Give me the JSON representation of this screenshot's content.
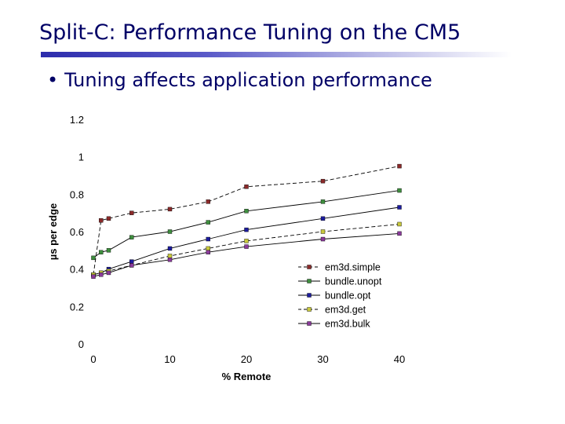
{
  "slide": {
    "title": "Split-C: Performance Tuning on the CM5",
    "bullet_symbol": "•",
    "bullet": "Tuning affects application performance"
  },
  "chart_data": {
    "type": "line",
    "title": "",
    "xlabel": "% Remote",
    "ylabel": "µs per edge",
    "xlim": [
      0,
      40
    ],
    "ylim": [
      0,
      1.2
    ],
    "x_ticks": [
      "0",
      "10",
      "20",
      "30",
      "40"
    ],
    "y_ticks": [
      "0",
      "0.2",
      "0.4",
      "0.6",
      "0.8",
      "1",
      "1.2"
    ],
    "x_tick_values": [
      0,
      10,
      20,
      30,
      40
    ],
    "y_tick_values": [
      0,
      0.2,
      0.4,
      0.6,
      0.8,
      1.0,
      1.2
    ],
    "grid": false,
    "legend_position": "bottom-right",
    "series": [
      {
        "name": "em3d.simple",
        "color": "#8b2a2a",
        "line_style": "dashed",
        "x": [
          0,
          1,
          2,
          5,
          10,
          15,
          20,
          30,
          40
        ],
        "values": [
          0.37,
          0.66,
          0.67,
          0.7,
          0.72,
          0.76,
          0.84,
          0.87,
          0.95
        ]
      },
      {
        "name": "bundle.unopt",
        "color": "#3e8e3e",
        "line_style": "solid",
        "x": [
          0,
          1,
          2,
          5,
          10,
          15,
          20,
          30,
          40
        ],
        "values": [
          0.46,
          0.49,
          0.5,
          0.57,
          0.6,
          0.65,
          0.71,
          0.76,
          0.82
        ]
      },
      {
        "name": "bundle.opt",
        "color": "#1c1c9e",
        "line_style": "solid",
        "x": [
          0,
          1,
          2,
          5,
          10,
          15,
          20,
          30,
          40
        ],
        "values": [
          0.37,
          0.38,
          0.4,
          0.44,
          0.51,
          0.56,
          0.61,
          0.67,
          0.73
        ]
      },
      {
        "name": "em3d.get",
        "color": "#c8c83c",
        "line_style": "dashed",
        "x": [
          0,
          1,
          2,
          5,
          10,
          15,
          20,
          30,
          40
        ],
        "values": [
          0.37,
          0.38,
          0.39,
          0.42,
          0.47,
          0.51,
          0.55,
          0.6,
          0.64
        ]
      },
      {
        "name": "em3d.bulk",
        "color": "#8a3a9a",
        "line_style": "solid",
        "x": [
          0,
          1,
          2,
          5,
          10,
          15,
          20,
          30,
          40
        ],
        "values": [
          0.36,
          0.37,
          0.38,
          0.42,
          0.45,
          0.49,
          0.52,
          0.56,
          0.59
        ]
      }
    ]
  }
}
